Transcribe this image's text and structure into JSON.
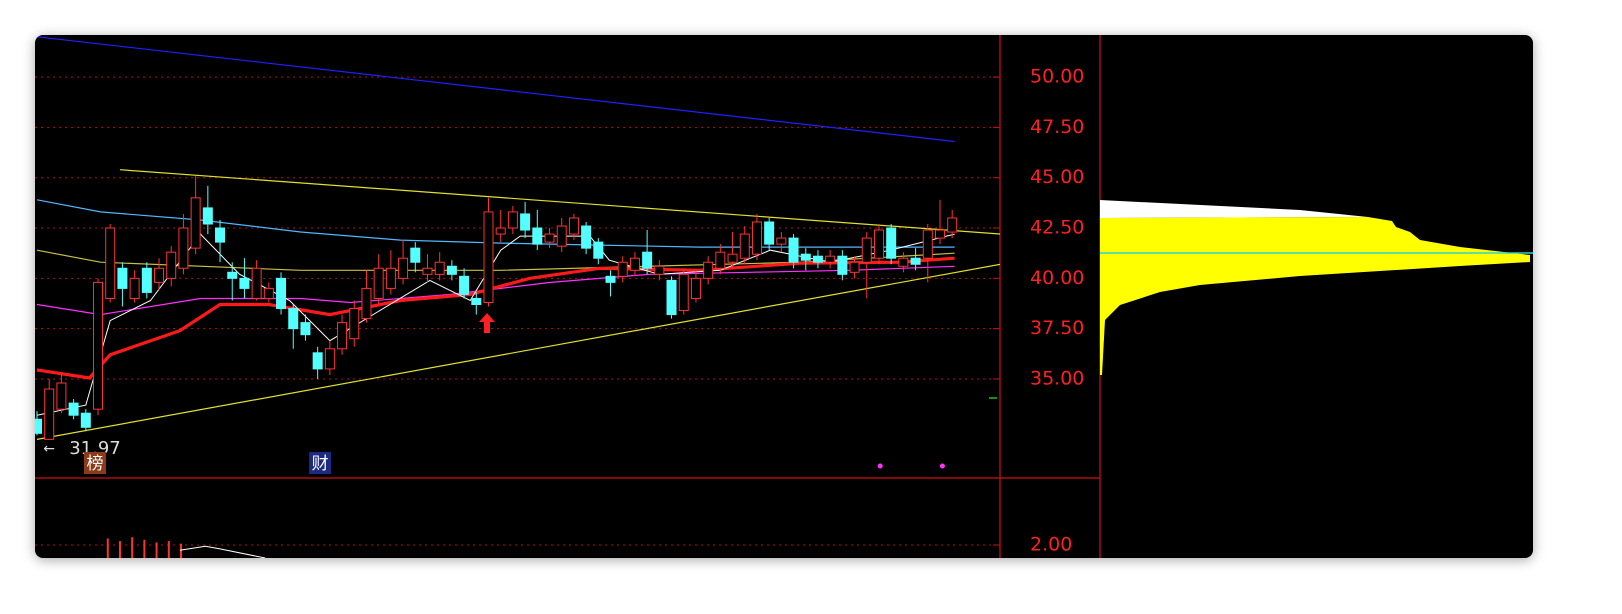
{
  "chart_data": [
    {
      "type": "candlestick",
      "up_color": "#ff3232",
      "down_color": "#54ffff",
      "ylim": [
        30.08,
        52.09
      ],
      "xlim": [
        0,
        79
      ],
      "yticks": [
        {
          "value": 35,
          "label": "35.00"
        },
        {
          "value": 37.5,
          "label": "37.50"
        },
        {
          "value": 40,
          "label": "40.00"
        },
        {
          "value": 42.5,
          "label": "42.50"
        },
        {
          "value": 45,
          "label": "45.00"
        },
        {
          "value": 47.5,
          "label": "47.50"
        },
        {
          "value": 50,
          "label": "50.00"
        }
      ],
      "grid": true,
      "open": [
        33.0,
        32.0,
        33.5,
        33.8,
        33.3,
        33.5,
        39.0,
        40.5,
        39.0,
        40.5,
        39.8,
        40.0,
        40.5,
        41.5,
        43.5,
        42.5,
        40.3,
        40.0,
        39.0,
        39.0,
        40.0,
        38.5,
        37.8,
        36.3,
        35.5,
        36.5,
        37.0,
        38.0,
        39.0,
        39.5,
        40.0,
        41.5,
        40.2,
        40.2,
        40.6,
        40.1,
        39.0,
        38.8,
        42.2,
        42.5,
        43.2,
        42.5,
        41.8,
        41.6,
        42.2,
        42.6,
        41.8,
        40.1,
        40.1,
        40.4,
        41.3,
        40.2,
        39.9,
        38.4,
        39.0,
        40.0,
        40.5,
        40.8,
        41.0,
        41.2,
        42.8,
        41.7,
        42.0,
        41.2,
        41.1,
        40.8,
        41.1,
        40.3,
        40.8,
        41.0,
        42.5,
        40.6,
        41.0,
        41.0,
        42.0,
        42.3
      ],
      "high": [
        33.4,
        35.0,
        35.3,
        34.0,
        33.5,
        40.0,
        42.7,
        40.8,
        40.4,
        40.8,
        41.0,
        41.6,
        43.2,
        45.1,
        44.6,
        42.9,
        40.8,
        41.0,
        40.9,
        39.8,
        40.3,
        38.7,
        38.2,
        36.6,
        36.9,
        38.2,
        38.9,
        40.4,
        41.2,
        41.4,
        41.9,
        41.8,
        41.2,
        41.3,
        40.9,
        40.5,
        39.3,
        44.0,
        43.4,
        43.6,
        43.8,
        43.4,
        42.5,
        43.0,
        43.2,
        42.8,
        42.0,
        40.4,
        41.1,
        41.3,
        42.4,
        40.9,
        40.1,
        40.5,
        40.4,
        41.1,
        41.7,
        42.3,
        42.6,
        43.2,
        43.0,
        42.3,
        42.2,
        41.5,
        41.4,
        41.4,
        41.4,
        41.1,
        42.3,
        42.7,
        42.7,
        41.3,
        41.5,
        42.7,
        43.9,
        43.4
      ],
      "low": [
        32.2,
        31.97,
        33.3,
        33.0,
        32.4,
        33.2,
        38.8,
        38.6,
        38.8,
        39.0,
        39.4,
        39.6,
        40.2,
        41.2,
        42.2,
        40.8,
        38.9,
        39.0,
        38.9,
        38.8,
        38.2,
        36.5,
        36.9,
        35.0,
        35.2,
        36.2,
        36.6,
        37.8,
        38.7,
        39.2,
        39.7,
        40.3,
        39.8,
        39.9,
        39.9,
        39.0,
        38.2,
        38.6,
        41.8,
        42.2,
        42.0,
        41.4,
        41.5,
        41.3,
        41.9,
        41.2,
        40.7,
        39.1,
        39.8,
        40.1,
        40.2,
        39.9,
        38.0,
        38.2,
        38.8,
        39.7,
        40.2,
        40.5,
        40.7,
        40.9,
        41.4,
        41.3,
        40.5,
        40.4,
        40.5,
        40.5,
        39.9,
        40.0,
        39.0,
        40.7,
        40.7,
        40.3,
        40.4,
        39.8,
        41.7,
        42.0
      ],
      "close": [
        32.3,
        34.5,
        34.8,
        33.2,
        32.6,
        39.8,
        42.5,
        39.5,
        40.0,
        39.3,
        40.5,
        41.3,
        42.5,
        44.0,
        42.7,
        41.8,
        40.0,
        39.5,
        40.5,
        39.5,
        38.5,
        37.5,
        37.2,
        35.5,
        36.5,
        37.8,
        38.5,
        39.5,
        40.5,
        40.5,
        41.0,
        40.8,
        40.5,
        40.8,
        40.2,
        39.2,
        38.7,
        43.3,
        42.5,
        43.3,
        42.4,
        41.7,
        42.2,
        42.6,
        43.0,
        41.5,
        41.0,
        39.8,
        40.8,
        41.0,
        40.5,
        40.6,
        38.2,
        40.2,
        40.0,
        40.8,
        41.3,
        41.2,
        42.2,
        42.8,
        41.7,
        42.0,
        40.8,
        40.9,
        40.8,
        41.1,
        40.2,
        40.8,
        42.0,
        42.4,
        41.0,
        41.0,
        40.7,
        42.4,
        42.4,
        43.0
      ],
      "lines": [
        {
          "color": "#2020ff",
          "width": 1.2,
          "x": [
            0,
            75.2
          ],
          "values": [
            52.0,
            46.8
          ]
        },
        {
          "color": "#e0e030",
          "width": 1.2,
          "x": [
            6.8,
            79
          ],
          "values": [
            45.4,
            42.2
          ]
        },
        {
          "color": "#e0e030",
          "width": 1.2,
          "x": [
            0,
            79
          ],
          "values": [
            32.0,
            40.7
          ]
        },
        {
          "color": "#4fb8ff",
          "width": 1.2,
          "x": [
            0,
            5.2,
            13.4,
            21.6,
            29.8,
            38,
            46.1,
            54.3,
            62.5,
            75.2
          ],
          "values": [
            43.9,
            43.3,
            42.9,
            42.3,
            41.9,
            41.75,
            41.65,
            41.55,
            41.55,
            41.55
          ]
        },
        {
          "color": "#c8c040",
          "width": 1.2,
          "x": [
            0,
            5.2,
            21.6,
            38,
            62.5,
            75.2
          ],
          "values": [
            41.4,
            40.8,
            40.4,
            40.4,
            40.8,
            41.25
          ]
        },
        {
          "color": "#ff30ff",
          "width": 1.2,
          "x": [
            0,
            5.2,
            13.4,
            21.6,
            25.7,
            33.9,
            42.1,
            50.2,
            58.4,
            66.6,
            75.2
          ],
          "values": [
            38.7,
            38.2,
            39.0,
            39.0,
            38.8,
            39.2,
            39.8,
            40.2,
            40.3,
            40.4,
            40.6
          ]
        },
        {
          "color": "#ff1a1a",
          "width": 3.2,
          "x": [
            0,
            4.3,
            6,
            11.7,
            15,
            19,
            24,
            29.8,
            35.5,
            40.4,
            46.1,
            54.3,
            62.5,
            70.7,
            75.2
          ],
          "values": [
            35.45,
            35.05,
            36.2,
            37.4,
            38.7,
            38.7,
            38.2,
            38.9,
            39.2,
            40.0,
            40.5,
            40.4,
            40.75,
            40.8,
            41.0
          ]
        },
        {
          "color": "#ffffff",
          "width": 1,
          "x": [
            0,
            4,
            6,
            9.3,
            13.4,
            16.6,
            20.7,
            24,
            28.1,
            32.2,
            35.5,
            38,
            39.6,
            45.3,
            46.9,
            51,
            56,
            60.1,
            65,
            69.9,
            75.2
          ],
          "values": [
            33.2,
            33.7,
            37.9,
            38.9,
            42.2,
            40.2,
            38.9,
            36.9,
            38.4,
            39.9,
            38.9,
            41.4,
            42.1,
            42.1,
            40.9,
            40.2,
            40.4,
            41.4,
            40.8,
            41.4,
            42.2
          ]
        }
      ],
      "low_label": 31.97,
      "badges": [
        {
          "x": 4.75,
          "text": "榜",
          "color": "#8b3a1a"
        },
        {
          "x": 23.2,
          "text": "财",
          "color": "#1c2a80"
        }
      ],
      "events": {
        "color": "#ff30ff",
        "x": [
          69.1,
          74.2
        ]
      }
    },
    {
      "type": "bar",
      "color": "#ff3232",
      "ylim": [
        1.9,
        2.515
      ],
      "xlim": [
        0,
        79
      ],
      "yticks": [
        {
          "value": 2,
          "label": "2.00"
        }
      ],
      "grid": true,
      "x": [
        5.8,
        6.8,
        7.8,
        8.8,
        9.8,
        10.8,
        11.8
      ],
      "values": [
        2.05,
        2.03,
        2.06,
        2.04,
        2.02,
        2.03,
        2.01
      ],
      "lines": [
        {
          "color": "#ffffff",
          "width": 1,
          "x": [
            11.7,
            13.8,
            15,
            18.7
          ],
          "values": [
            1.96,
            1.99,
            1.97,
            1.9
          ]
        }
      ]
    }
  ]
}
